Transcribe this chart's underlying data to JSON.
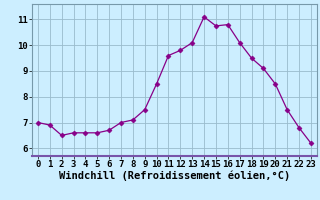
{
  "x": [
    0,
    1,
    2,
    3,
    4,
    5,
    6,
    7,
    8,
    9,
    10,
    11,
    12,
    13,
    14,
    15,
    16,
    17,
    18,
    19,
    20,
    21,
    22,
    23
  ],
  "y": [
    7.0,
    6.9,
    6.5,
    6.6,
    6.6,
    6.6,
    6.7,
    7.0,
    7.1,
    7.5,
    8.5,
    9.6,
    9.8,
    10.1,
    11.1,
    10.75,
    10.8,
    10.1,
    9.5,
    9.1,
    8.5,
    7.5,
    6.8,
    6.2
  ],
  "line_color": "#880088",
  "marker": "D",
  "marker_size": 2.5,
  "bg_color": "#cceeff",
  "grid_color": "#99bbcc",
  "xlabel": "Windchill (Refroidissement éolien,°C)",
  "xlabel_fontsize": 7.5,
  "yticks": [
    6,
    7,
    8,
    9,
    10,
    11
  ],
  "xticks": [
    0,
    1,
    2,
    3,
    4,
    5,
    6,
    7,
    8,
    9,
    10,
    11,
    12,
    13,
    14,
    15,
    16,
    17,
    18,
    19,
    20,
    21,
    22,
    23
  ],
  "ylim": [
    5.7,
    11.6
  ],
  "xlim": [
    -0.5,
    23.5
  ],
  "tick_fontsize": 6.5,
  "border_color": "#7799aa",
  "figsize": [
    3.2,
    2.0
  ],
  "dpi": 100
}
